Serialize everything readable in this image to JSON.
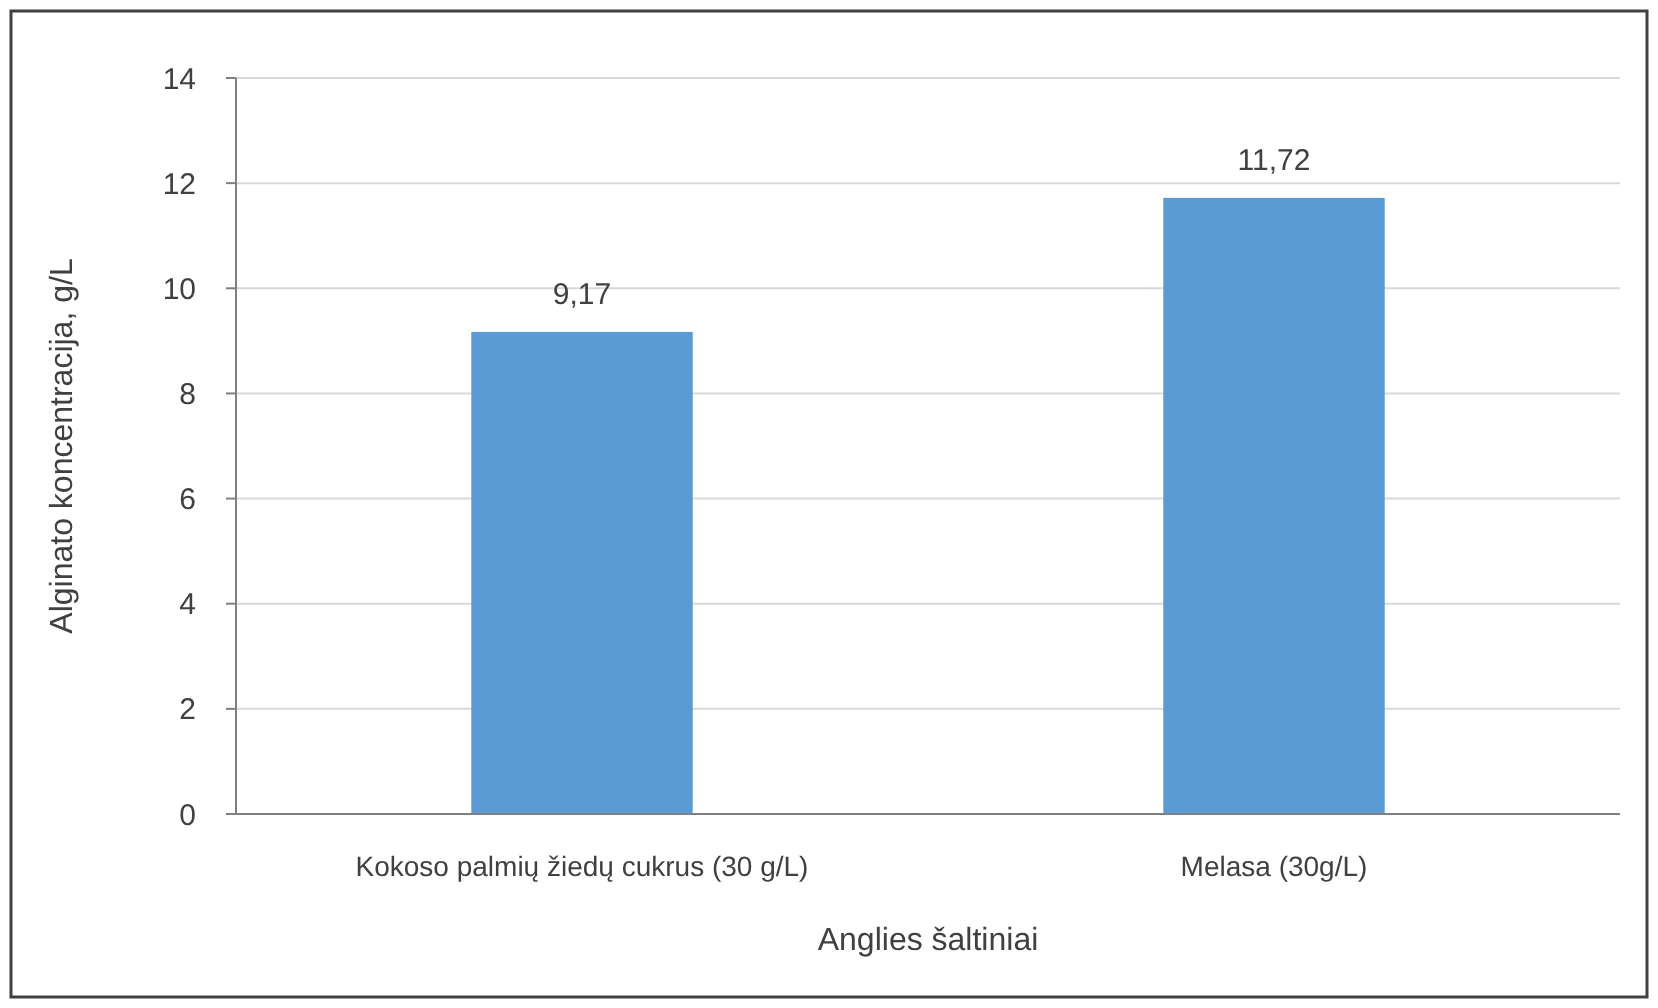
{
  "chart_data": {
    "type": "bar",
    "xlabel": "Anglies šaltiniai",
    "ylabel": "Alginato koncentracija, g/L",
    "categories": [
      "Kokoso palmių žiedų cukrus (30 g/L)",
      "Melasa (30g/L)"
    ],
    "values": [
      9.17,
      11.72
    ],
    "value_labels": [
      "9,17",
      "11,72"
    ],
    "color": "#5b9bd5",
    "ylim": [
      0,
      14
    ],
    "yticks": [
      0,
      2,
      4,
      6,
      8,
      10,
      12,
      14
    ],
    "grid": "y"
  }
}
